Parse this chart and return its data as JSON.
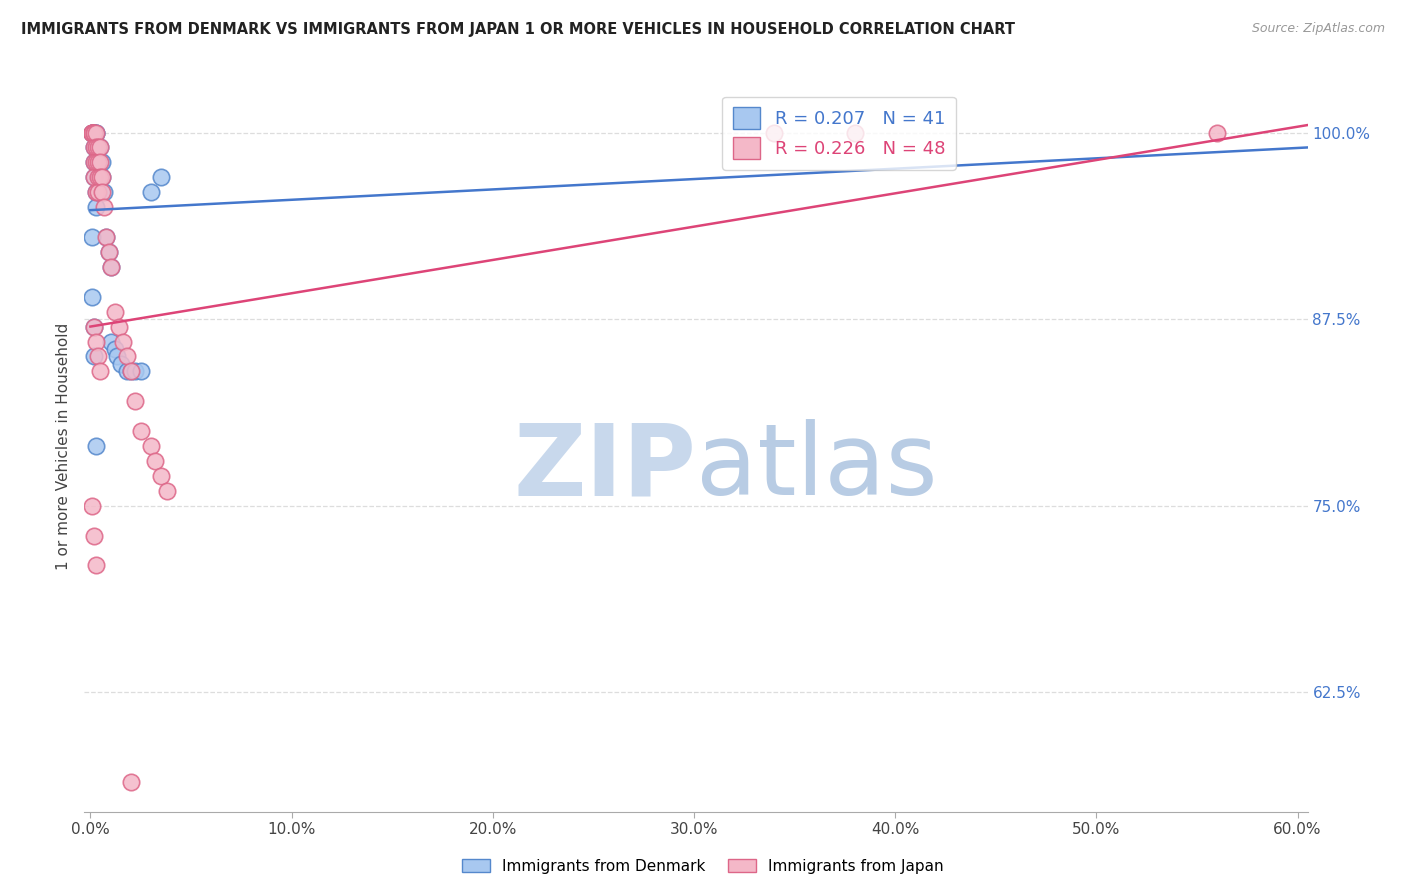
{
  "title": "IMMIGRANTS FROM DENMARK VS IMMIGRANTS FROM JAPAN 1 OR MORE VEHICLES IN HOUSEHOLD CORRELATION CHART",
  "source": "Source: ZipAtlas.com",
  "ylabel": "1 or more Vehicles in Household",
  "ytick_labels": [
    "100.0%",
    "87.5%",
    "75.0%",
    "62.5%"
  ],
  "ytick_values": [
    1.0,
    0.875,
    0.75,
    0.625
  ],
  "ylim": [
    0.545,
    1.035
  ],
  "xlim": [
    -0.003,
    0.605
  ],
  "denmark_color": "#a8c8f0",
  "japan_color": "#f4b8c8",
  "denmark_edge_color": "#5588cc",
  "japan_edge_color": "#dd6688",
  "denmark_line_color": "#4477cc",
  "japan_line_color": "#dd4477",
  "legend_r_denmark": "R = 0.207",
  "legend_n_denmark": "N = 41",
  "legend_r_japan": "R = 0.226",
  "legend_n_japan": "N = 48",
  "watermark_zip": "ZIP",
  "watermark_atlas": "atlas",
  "watermark_color": "#ccddf0",
  "grid_color": "#dddddd",
  "denmark_x": [
    0.001,
    0.001,
    0.002,
    0.002,
    0.002,
    0.002,
    0.002,
    0.002,
    0.003,
    0.003,
    0.003,
    0.003,
    0.003,
    0.003,
    0.004,
    0.004,
    0.004,
    0.004,
    0.005,
    0.005,
    0.006,
    0.006,
    0.007,
    0.008,
    0.009,
    0.01,
    0.01,
    0.012,
    0.013,
    0.015,
    0.018,
    0.02,
    0.022,
    0.025,
    0.03,
    0.035,
    0.001,
    0.001,
    0.002,
    0.002,
    0.003
  ],
  "denmark_y": [
    1.0,
    1.0,
    1.0,
    1.0,
    1.0,
    0.99,
    0.98,
    0.97,
    1.0,
    1.0,
    0.99,
    0.98,
    0.96,
    0.95,
    0.99,
    0.98,
    0.97,
    0.96,
    0.99,
    0.98,
    0.98,
    0.97,
    0.96,
    0.93,
    0.92,
    0.91,
    0.86,
    0.855,
    0.85,
    0.845,
    0.84,
    0.84,
    0.84,
    0.84,
    0.96,
    0.97,
    0.93,
    0.89,
    0.87,
    0.85,
    0.79
  ],
  "japan_x": [
    0.001,
    0.001,
    0.001,
    0.001,
    0.002,
    0.002,
    0.002,
    0.002,
    0.002,
    0.003,
    0.003,
    0.003,
    0.003,
    0.004,
    0.004,
    0.004,
    0.004,
    0.005,
    0.005,
    0.005,
    0.006,
    0.006,
    0.007,
    0.008,
    0.009,
    0.01,
    0.012,
    0.014,
    0.016,
    0.018,
    0.02,
    0.022,
    0.025,
    0.03,
    0.032,
    0.035,
    0.038,
    0.002,
    0.003,
    0.004,
    0.005,
    0.001,
    0.002,
    0.003,
    0.34,
    0.38,
    0.56,
    0.02
  ],
  "japan_y": [
    1.0,
    1.0,
    1.0,
    1.0,
    1.0,
    1.0,
    0.99,
    0.98,
    0.97,
    1.0,
    0.99,
    0.98,
    0.96,
    0.99,
    0.98,
    0.97,
    0.96,
    0.99,
    0.98,
    0.97,
    0.97,
    0.96,
    0.95,
    0.93,
    0.92,
    0.91,
    0.88,
    0.87,
    0.86,
    0.85,
    0.84,
    0.82,
    0.8,
    0.79,
    0.78,
    0.77,
    0.76,
    0.87,
    0.86,
    0.85,
    0.84,
    0.75,
    0.73,
    0.71,
    1.0,
    1.0,
    1.0,
    0.565
  ],
  "denmark_trend_x": [
    0.0,
    0.605
  ],
  "denmark_trend_y": [
    0.948,
    0.99
  ],
  "japan_trend_x": [
    0.0,
    0.605
  ],
  "japan_trend_y": [
    0.87,
    1.005
  ],
  "xtick_positions": [
    0.0,
    0.1,
    0.2,
    0.3,
    0.4,
    0.5,
    0.6
  ],
  "xtick_labels": [
    "0.0%",
    "10.0%",
    "20.0%",
    "30.0%",
    "40.0%",
    "50.0%",
    "60.0%"
  ]
}
